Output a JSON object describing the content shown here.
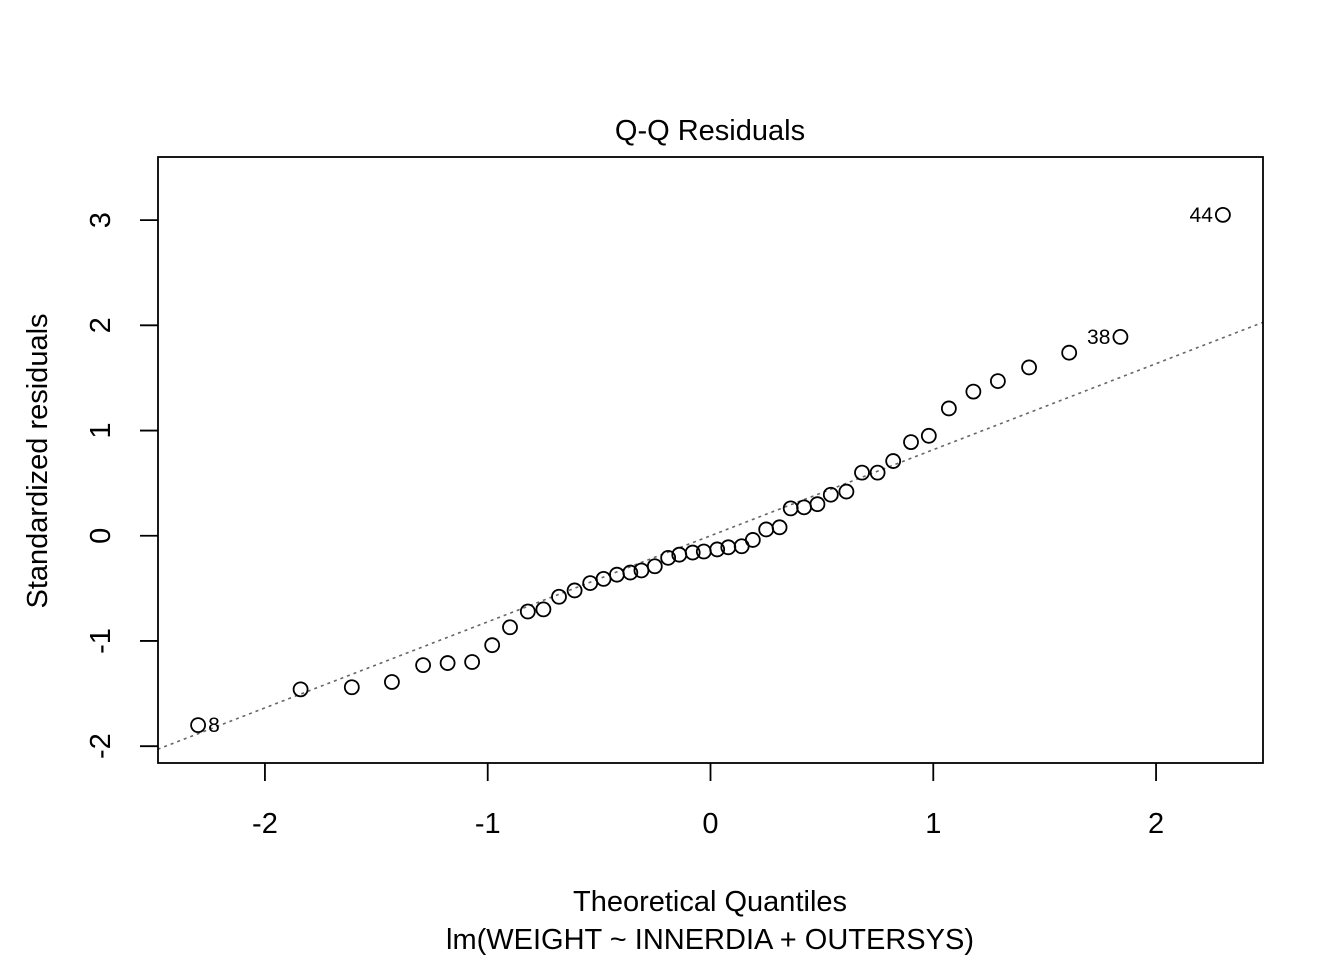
{
  "chart_data": {
    "type": "scatter",
    "title": "Q-Q Residuals",
    "xlabel": "Theoretical Quantiles",
    "subtitle": "lm(WEIGHT ~ INNERDIA + OUTERSYS)",
    "ylabel": "Standardized residuals",
    "xlim": [
      -2.48,
      2.48
    ],
    "ylim": [
      -2.16,
      3.6
    ],
    "x_ticks": [
      -2,
      -1,
      0,
      1,
      2
    ],
    "x_tick_labels": [
      "-2",
      "-1",
      "0",
      "1",
      "2"
    ],
    "y_ticks": [
      -2,
      -1,
      0,
      1,
      2,
      3
    ],
    "y_tick_labels": [
      "-2",
      "-1",
      "0",
      "1",
      "2",
      "3"
    ],
    "grid": false,
    "reference_line": {
      "style": "dotted",
      "color": "#666666",
      "intercept": 0.0,
      "slope": 0.818
    },
    "points": [
      {
        "x": -2.3,
        "y": -1.8,
        "label": "8"
      },
      {
        "x": -1.84,
        "y": -1.46,
        "label": ""
      },
      {
        "x": -1.61,
        "y": -1.44,
        "label": ""
      },
      {
        "x": -1.43,
        "y": -1.39,
        "label": ""
      },
      {
        "x": -1.29,
        "y": -1.23,
        "label": ""
      },
      {
        "x": -1.18,
        "y": -1.21,
        "label": ""
      },
      {
        "x": -1.07,
        "y": -1.2,
        "label": ""
      },
      {
        "x": -0.98,
        "y": -1.04,
        "label": ""
      },
      {
        "x": -0.9,
        "y": -0.87,
        "label": ""
      },
      {
        "x": -0.82,
        "y": -0.72,
        "label": ""
      },
      {
        "x": -0.75,
        "y": -0.7,
        "label": ""
      },
      {
        "x": -0.68,
        "y": -0.58,
        "label": ""
      },
      {
        "x": -0.61,
        "y": -0.52,
        "label": ""
      },
      {
        "x": -0.54,
        "y": -0.45,
        "label": ""
      },
      {
        "x": -0.48,
        "y": -0.41,
        "label": ""
      },
      {
        "x": -0.42,
        "y": -0.37,
        "label": ""
      },
      {
        "x": -0.36,
        "y": -0.35,
        "label": ""
      },
      {
        "x": -0.31,
        "y": -0.33,
        "label": ""
      },
      {
        "x": -0.25,
        "y": -0.29,
        "label": ""
      },
      {
        "x": -0.19,
        "y": -0.21,
        "label": ""
      },
      {
        "x": -0.14,
        "y": -0.18,
        "label": ""
      },
      {
        "x": -0.08,
        "y": -0.16,
        "label": ""
      },
      {
        "x": -0.03,
        "y": -0.15,
        "label": ""
      },
      {
        "x": 0.03,
        "y": -0.13,
        "label": ""
      },
      {
        "x": 0.08,
        "y": -0.11,
        "label": ""
      },
      {
        "x": 0.14,
        "y": -0.1,
        "label": ""
      },
      {
        "x": 0.19,
        "y": -0.04,
        "label": ""
      },
      {
        "x": 0.25,
        "y": 0.06,
        "label": ""
      },
      {
        "x": 0.31,
        "y": 0.08,
        "label": ""
      },
      {
        "x": 0.36,
        "y": 0.26,
        "label": ""
      },
      {
        "x": 0.42,
        "y": 0.27,
        "label": ""
      },
      {
        "x": 0.48,
        "y": 0.3,
        "label": ""
      },
      {
        "x": 0.54,
        "y": 0.39,
        "label": ""
      },
      {
        "x": 0.61,
        "y": 0.42,
        "label": ""
      },
      {
        "x": 0.68,
        "y": 0.6,
        "label": ""
      },
      {
        "x": 0.75,
        "y": 0.6,
        "label": ""
      },
      {
        "x": 0.82,
        "y": 0.71,
        "label": ""
      },
      {
        "x": 0.9,
        "y": 0.89,
        "label": ""
      },
      {
        "x": 0.98,
        "y": 0.95,
        "label": ""
      },
      {
        "x": 1.07,
        "y": 1.21,
        "label": ""
      },
      {
        "x": 1.18,
        "y": 1.37,
        "label": ""
      },
      {
        "x": 1.29,
        "y": 1.47,
        "label": ""
      },
      {
        "x": 1.43,
        "y": 1.6,
        "label": ""
      },
      {
        "x": 1.61,
        "y": 1.74,
        "label": ""
      },
      {
        "x": 1.84,
        "y": 1.89,
        "label": "38"
      },
      {
        "x": 2.3,
        "y": 3.05,
        "label": "44"
      }
    ]
  }
}
